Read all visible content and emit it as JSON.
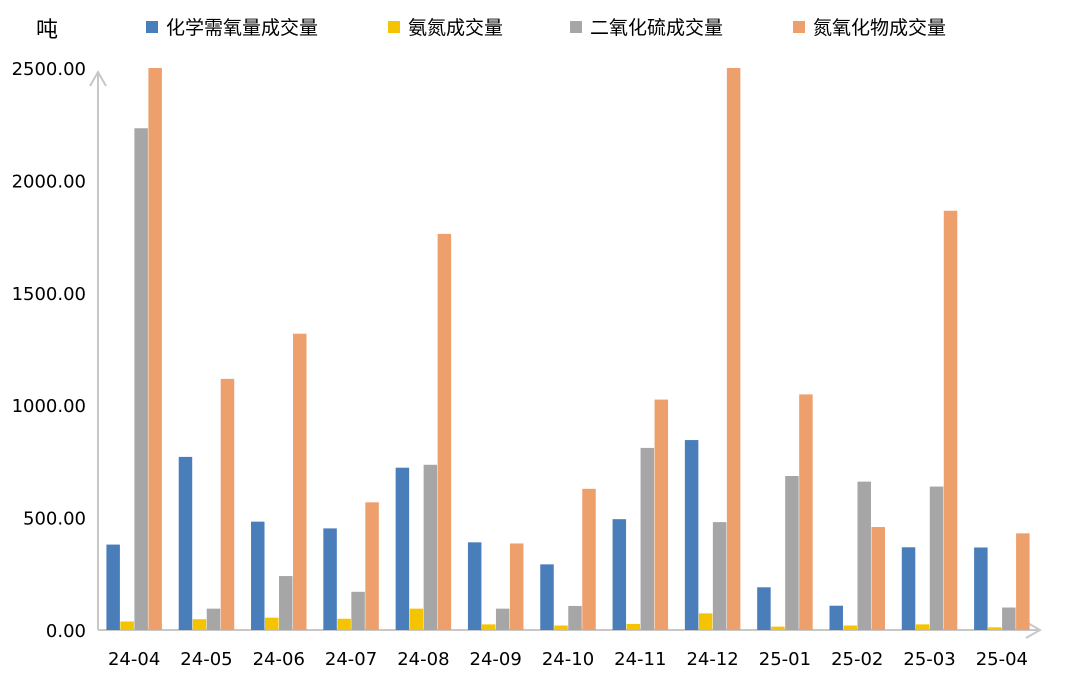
{
  "chart_data": {
    "type": "bar",
    "unit_label": "吨",
    "categories": [
      "24-04",
      "24-05",
      "24-06",
      "24-07",
      "24-08",
      "24-09",
      "24-10",
      "24-11",
      "24-12",
      "25-01",
      "25-02",
      "25-03",
      "25-04"
    ],
    "series": [
      {
        "name": "化学需氧量成交量",
        "color": "#4A7EBB",
        "values": [
          380,
          770,
          482,
          452,
          722,
          390,
          292,
          493,
          845,
          190,
          108,
          368,
          367
        ]
      },
      {
        "name": "氨氮成交量",
        "color": "#F5C400",
        "values": [
          38,
          48,
          55,
          50,
          95,
          25,
          20,
          27,
          74,
          15,
          20,
          25,
          12
        ]
      },
      {
        "name": "二氧化硫成交量",
        "color": "#A6A6A6",
        "values": [
          2232,
          95,
          240,
          170,
          735,
          95,
          107,
          810,
          480,
          685,
          660,
          638,
          100
        ]
      },
      {
        "name": "氮氧化物成交量",
        "color": "#ED9F6C",
        "values": [
          2500,
          1117,
          1318,
          568,
          1762,
          385,
          628,
          1025,
          2500,
          1048,
          458,
          1865,
          430
        ]
      }
    ],
    "yticks": [
      "0.00",
      "500.00",
      "1000.00",
      "1500.00",
      "2000.00",
      "2500.00"
    ],
    "ylim": [
      0,
      2500
    ],
    "legend_position": "top",
    "grid": false
  }
}
